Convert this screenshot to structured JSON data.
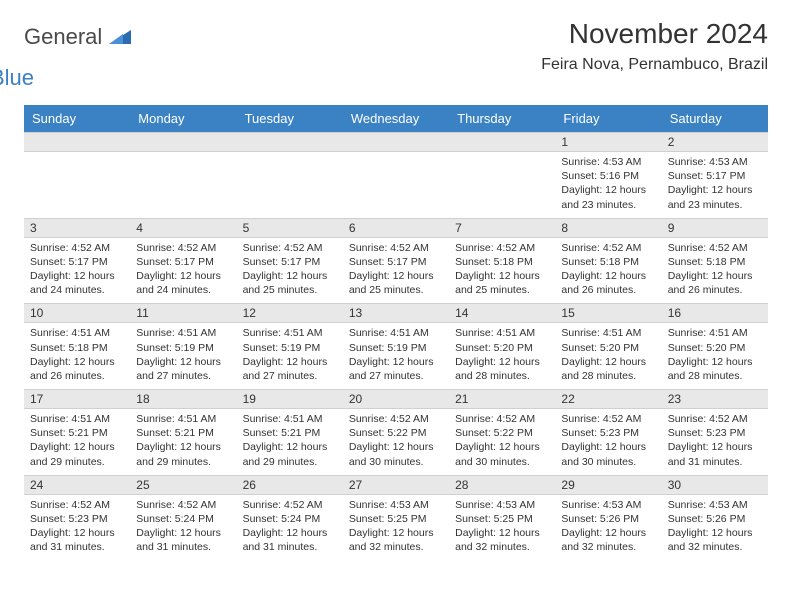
{
  "brand": {
    "name_part1": "General",
    "name_part2": "Blue",
    "color_gray": "#4a4a4a",
    "color_blue": "#3b7fc4"
  },
  "title": "November 2024",
  "location": "Feira Nova, Pernambuco, Brazil",
  "header_bg": "#3b82c4",
  "header_fg": "#ffffff",
  "daynum_bg": "#e8e8e8",
  "text_color": "#333333",
  "weekdays": [
    "Sunday",
    "Monday",
    "Tuesday",
    "Wednesday",
    "Thursday",
    "Friday",
    "Saturday"
  ],
  "weeks": [
    [
      null,
      null,
      null,
      null,
      null,
      {
        "n": "1",
        "sunrise": "4:53 AM",
        "sunset": "5:16 PM",
        "daylight": "12 hours and 23 minutes."
      },
      {
        "n": "2",
        "sunrise": "4:53 AM",
        "sunset": "5:17 PM",
        "daylight": "12 hours and 23 minutes."
      }
    ],
    [
      {
        "n": "3",
        "sunrise": "4:52 AM",
        "sunset": "5:17 PM",
        "daylight": "12 hours and 24 minutes."
      },
      {
        "n": "4",
        "sunrise": "4:52 AM",
        "sunset": "5:17 PM",
        "daylight": "12 hours and 24 minutes."
      },
      {
        "n": "5",
        "sunrise": "4:52 AM",
        "sunset": "5:17 PM",
        "daylight": "12 hours and 25 minutes."
      },
      {
        "n": "6",
        "sunrise": "4:52 AM",
        "sunset": "5:17 PM",
        "daylight": "12 hours and 25 minutes."
      },
      {
        "n": "7",
        "sunrise": "4:52 AM",
        "sunset": "5:18 PM",
        "daylight": "12 hours and 25 minutes."
      },
      {
        "n": "8",
        "sunrise": "4:52 AM",
        "sunset": "5:18 PM",
        "daylight": "12 hours and 26 minutes."
      },
      {
        "n": "9",
        "sunrise": "4:52 AM",
        "sunset": "5:18 PM",
        "daylight": "12 hours and 26 minutes."
      }
    ],
    [
      {
        "n": "10",
        "sunrise": "4:51 AM",
        "sunset": "5:18 PM",
        "daylight": "12 hours and 26 minutes."
      },
      {
        "n": "11",
        "sunrise": "4:51 AM",
        "sunset": "5:19 PM",
        "daylight": "12 hours and 27 minutes."
      },
      {
        "n": "12",
        "sunrise": "4:51 AM",
        "sunset": "5:19 PM",
        "daylight": "12 hours and 27 minutes."
      },
      {
        "n": "13",
        "sunrise": "4:51 AM",
        "sunset": "5:19 PM",
        "daylight": "12 hours and 27 minutes."
      },
      {
        "n": "14",
        "sunrise": "4:51 AM",
        "sunset": "5:20 PM",
        "daylight": "12 hours and 28 minutes."
      },
      {
        "n": "15",
        "sunrise": "4:51 AM",
        "sunset": "5:20 PM",
        "daylight": "12 hours and 28 minutes."
      },
      {
        "n": "16",
        "sunrise": "4:51 AM",
        "sunset": "5:20 PM",
        "daylight": "12 hours and 28 minutes."
      }
    ],
    [
      {
        "n": "17",
        "sunrise": "4:51 AM",
        "sunset": "5:21 PM",
        "daylight": "12 hours and 29 minutes."
      },
      {
        "n": "18",
        "sunrise": "4:51 AM",
        "sunset": "5:21 PM",
        "daylight": "12 hours and 29 minutes."
      },
      {
        "n": "19",
        "sunrise": "4:51 AM",
        "sunset": "5:21 PM",
        "daylight": "12 hours and 29 minutes."
      },
      {
        "n": "20",
        "sunrise": "4:52 AM",
        "sunset": "5:22 PM",
        "daylight": "12 hours and 30 minutes."
      },
      {
        "n": "21",
        "sunrise": "4:52 AM",
        "sunset": "5:22 PM",
        "daylight": "12 hours and 30 minutes."
      },
      {
        "n": "22",
        "sunrise": "4:52 AM",
        "sunset": "5:23 PM",
        "daylight": "12 hours and 30 minutes."
      },
      {
        "n": "23",
        "sunrise": "4:52 AM",
        "sunset": "5:23 PM",
        "daylight": "12 hours and 31 minutes."
      }
    ],
    [
      {
        "n": "24",
        "sunrise": "4:52 AM",
        "sunset": "5:23 PM",
        "daylight": "12 hours and 31 minutes."
      },
      {
        "n": "25",
        "sunrise": "4:52 AM",
        "sunset": "5:24 PM",
        "daylight": "12 hours and 31 minutes."
      },
      {
        "n": "26",
        "sunrise": "4:52 AM",
        "sunset": "5:24 PM",
        "daylight": "12 hours and 31 minutes."
      },
      {
        "n": "27",
        "sunrise": "4:53 AM",
        "sunset": "5:25 PM",
        "daylight": "12 hours and 32 minutes."
      },
      {
        "n": "28",
        "sunrise": "4:53 AM",
        "sunset": "5:25 PM",
        "daylight": "12 hours and 32 minutes."
      },
      {
        "n": "29",
        "sunrise": "4:53 AM",
        "sunset": "5:26 PM",
        "daylight": "12 hours and 32 minutes."
      },
      {
        "n": "30",
        "sunrise": "4:53 AM",
        "sunset": "5:26 PM",
        "daylight": "12 hours and 32 minutes."
      }
    ]
  ],
  "labels": {
    "sunrise": "Sunrise:",
    "sunset": "Sunset:",
    "daylight": "Daylight:"
  }
}
